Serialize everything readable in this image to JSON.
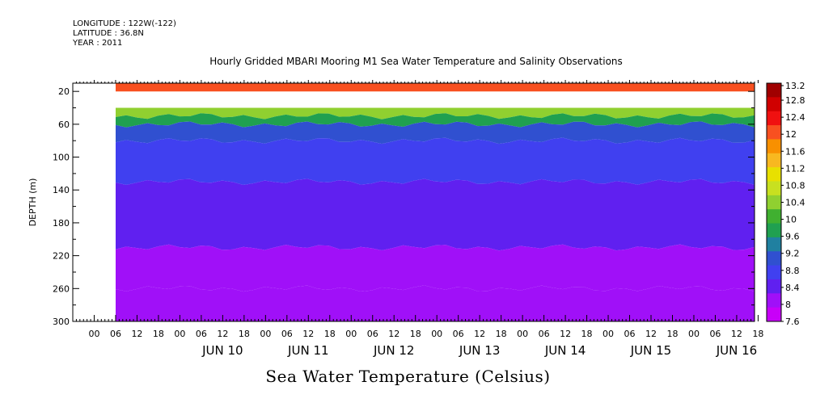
{
  "meta": {
    "longitude": "LONGITUDE : 122W(-122)",
    "latitude": "LATITUDE : 36.8N",
    "year": "YEAR : 2011"
  },
  "title": "Hourly Gridded MBARI Mooring M1 Sea Water Temperature and Salinity Observations",
  "bottom_title": "Sea Water Temperature (Celsius)",
  "chart_data": {
    "type": "heatmap",
    "title": "Hourly Gridded MBARI Mooring M1 Sea Water Temperature and Salinity Observations",
    "xlabel": "",
    "ylabel": "DEPTH (m)",
    "x_hour_ticks": [
      "00",
      "06",
      "12",
      "18",
      "00",
      "06",
      "12",
      "18",
      "00",
      "06",
      "12",
      "18",
      "00",
      "06",
      "12",
      "18",
      "00",
      "06",
      "12",
      "18",
      "00",
      "06",
      "12",
      "18",
      "00",
      "06",
      "12",
      "18",
      "00",
      "06",
      "12",
      "18"
    ],
    "x_day_labels": [
      "JUN 10",
      "JUN 11",
      "JUN 12",
      "JUN 13",
      "JUN 14",
      "JUN 15",
      "JUN 16"
    ],
    "x_range_hours_from_jun9_00": [
      -6,
      185
    ],
    "data_start_hour": 6,
    "y_ticks": [
      20,
      60,
      100,
      140,
      180,
      220,
      260,
      300
    ],
    "ylim": [
      300,
      10
    ],
    "colorbar_levels": [
      13.2,
      12.8,
      12.4,
      12,
      11.6,
      11.2,
      10.8,
      10.4,
      10,
      9.6,
      9.2,
      8.8,
      8.4,
      8,
      7.6
    ],
    "colorbar_colors": [
      "#a00000",
      "#d00000",
      "#f01010",
      "#f85020",
      "#f89000",
      "#f8b820",
      "#e8e000",
      "#c8e020",
      "#90d030",
      "#40b030",
      "#20a050",
      "#2080a0",
      "#3050d0",
      "#4040f0",
      "#6020f0",
      "#a010f8",
      "#c800f8"
    ],
    "temperature_bands": [
      {
        "depth_top": 10,
        "depth_bottom": 20,
        "temp": 12.5
      },
      {
        "depth_top": 20,
        "depth_bottom": 40,
        "temp": null
      },
      {
        "depth_top": 40,
        "depth_bottom": 50,
        "temp": 10.6
      },
      {
        "depth_top": 50,
        "depth_bottom": 60,
        "temp": 9.8
      },
      {
        "depth_top": 60,
        "depth_bottom": 80,
        "temp": 9.2
      },
      {
        "depth_top": 80,
        "depth_bottom": 130,
        "temp": 8.7
      },
      {
        "depth_top": 130,
        "depth_bottom": 210,
        "temp": 8.2
      },
      {
        "depth_top": 210,
        "depth_bottom": 260,
        "temp": 7.9
      },
      {
        "depth_top": 260,
        "depth_bottom": 300,
        "temp": 7.7
      }
    ]
  }
}
